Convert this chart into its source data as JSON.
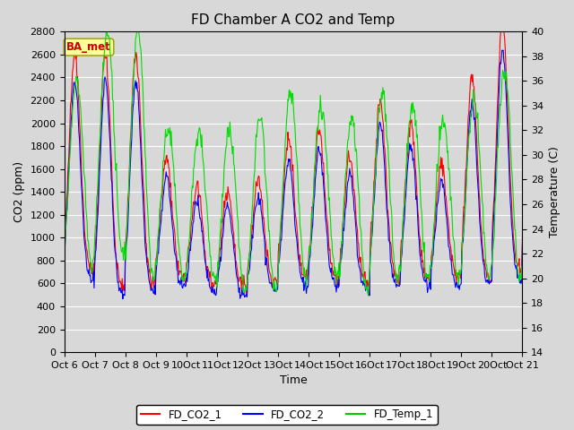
{
  "title": "FD Chamber A CO2 and Temp",
  "xlabel": "Time",
  "ylabel_left": "CO2 (ppm)",
  "ylabel_right": "Temperature (C)",
  "ylim_left": [
    0,
    2800
  ],
  "ylim_right": [
    14,
    40
  ],
  "yticks_left": [
    0,
    200,
    400,
    600,
    800,
    1000,
    1200,
    1400,
    1600,
    1800,
    2000,
    2200,
    2400,
    2600,
    2800
  ],
  "yticks_right": [
    14,
    16,
    18,
    20,
    22,
    24,
    26,
    28,
    30,
    32,
    34,
    36,
    38,
    40
  ],
  "annotation_text": "BA_met",
  "annotation_color": "#CC0000",
  "annotation_bg": "#FFFF99",
  "annotation_border": "#999900",
  "legend_entries": [
    "FD_CO2_1",
    "FD_CO2_2",
    "FD_Temp_1"
  ],
  "legend_colors": [
    "#FF0000",
    "#0000FF",
    "#00CC00"
  ],
  "color_co2_1": "#FF0000",
  "color_co2_2": "#0000FF",
  "color_temp": "#00DD00",
  "bg_color": "#D8D8D8",
  "grid_color": "#FFFFFF",
  "title_fontsize": 11,
  "axis_fontsize": 9,
  "tick_fontsize": 8
}
